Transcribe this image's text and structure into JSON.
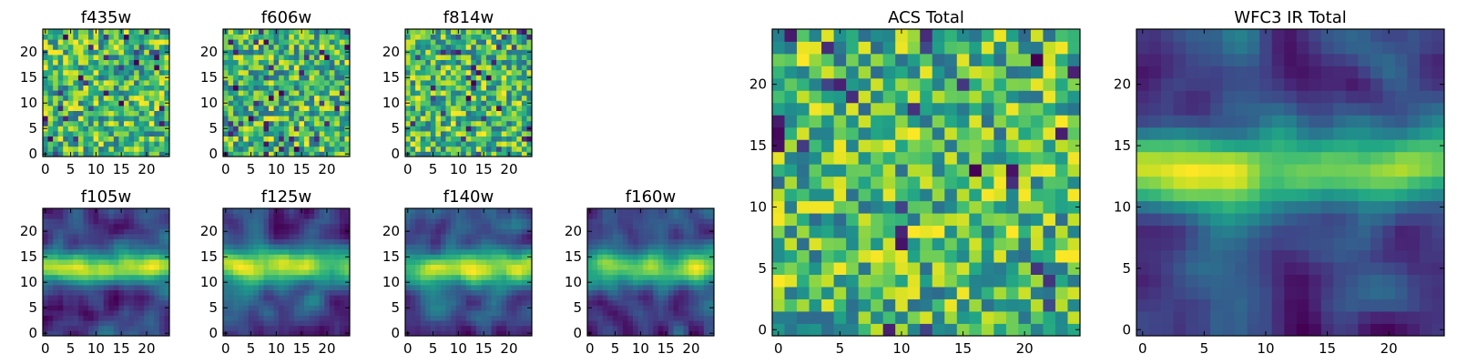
{
  "chart_data": [
    {
      "type": "heatmap",
      "title": "f435w",
      "size": 25,
      "colormap": "viridis",
      "values_note": "",
      "x_ticks": [
        0,
        5,
        10,
        15,
        20
      ],
      "x_tick_labels": [
        "0",
        "5",
        "10",
        "15",
        "20"
      ],
      "y_ticks": [
        0,
        5,
        10,
        15,
        20
      ],
      "y_tick_labels": [
        "0",
        "5",
        "10",
        "15",
        "20"
      ],
      "xlim": [
        -0.5,
        24.5
      ],
      "ylim": [
        -0.5,
        24.5
      ],
      "pattern": "noise",
      "seed": 11
    },
    {
      "type": "heatmap",
      "title": "f606w",
      "size": 25,
      "colormap": "viridis",
      "x_ticks": [
        0,
        5,
        10,
        15,
        20
      ],
      "x_tick_labels": [
        "0",
        "5",
        "10",
        "15",
        "20"
      ],
      "y_ticks": [
        0,
        5,
        10,
        15,
        20
      ],
      "y_tick_labels": [
        "0",
        "5",
        "10",
        "15",
        "20"
      ],
      "xlim": [
        -0.5,
        24.5
      ],
      "ylim": [
        -0.5,
        24.5
      ],
      "pattern": "noise",
      "seed": 23
    },
    {
      "type": "heatmap",
      "title": "f814w",
      "size": 25,
      "colormap": "viridis",
      "x_ticks": [
        0,
        5,
        10,
        15,
        20
      ],
      "x_tick_labels": [
        "0",
        "5",
        "10",
        "15",
        "20"
      ],
      "y_ticks": [
        0,
        5,
        10,
        15,
        20
      ],
      "y_tick_labels": [
        "0",
        "5",
        "10",
        "15",
        "20"
      ],
      "xlim": [
        -0.5,
        24.5
      ],
      "ylim": [
        -0.5,
        24.5
      ],
      "pattern": "noise",
      "seed": 37
    },
    {
      "type": "heatmap",
      "title": "f105w",
      "size": 25,
      "colormap": "viridis",
      "x_ticks": [
        0,
        5,
        10,
        15,
        20
      ],
      "x_tick_labels": [
        "0",
        "5",
        "10",
        "15",
        "20"
      ],
      "y_ticks": [
        0,
        5,
        10,
        15,
        20
      ],
      "y_tick_labels": [
        "0",
        "5",
        "10",
        "15",
        "20"
      ],
      "xlim": [
        -0.5,
        24.5
      ],
      "ylim": [
        -0.5,
        24.5
      ],
      "pattern": "smooth",
      "seed": 41
    },
    {
      "type": "heatmap",
      "title": "f125w",
      "size": 25,
      "colormap": "viridis",
      "x_ticks": [
        0,
        5,
        10,
        15,
        20
      ],
      "x_tick_labels": [
        "0",
        "5",
        "10",
        "15",
        "20"
      ],
      "y_ticks": [
        0,
        5,
        10,
        15,
        20
      ],
      "y_tick_labels": [
        "0",
        "5",
        "10",
        "15",
        "20"
      ],
      "xlim": [
        -0.5,
        24.5
      ],
      "ylim": [
        -0.5,
        24.5
      ],
      "pattern": "smooth",
      "seed": 53
    },
    {
      "type": "heatmap",
      "title": "f140w",
      "size": 25,
      "colormap": "viridis",
      "x_ticks": [
        0,
        5,
        10,
        15,
        20
      ],
      "x_tick_labels": [
        "0",
        "5",
        "10",
        "15",
        "20"
      ],
      "y_ticks": [
        0,
        5,
        10,
        15,
        20
      ],
      "y_tick_labels": [
        "0",
        "5",
        "10",
        "15",
        "20"
      ],
      "xlim": [
        -0.5,
        24.5
      ],
      "ylim": [
        -0.5,
        24.5
      ],
      "pattern": "smooth",
      "seed": 67
    },
    {
      "type": "heatmap",
      "title": "f160w",
      "size": 25,
      "colormap": "viridis",
      "x_ticks": [
        0,
        5,
        10,
        15,
        20
      ],
      "x_tick_labels": [
        "0",
        "5",
        "10",
        "15",
        "20"
      ],
      "y_ticks": [
        0,
        5,
        10,
        15,
        20
      ],
      "y_tick_labels": [
        "0",
        "5",
        "10",
        "15",
        "20"
      ],
      "xlim": [
        -0.5,
        24.5
      ],
      "ylim": [
        -0.5,
        24.5
      ],
      "pattern": "smooth",
      "seed": 79
    },
    {
      "type": "heatmap",
      "title": "ACS Total",
      "size": 25,
      "colormap": "viridis",
      "x_ticks": [
        0,
        5,
        10,
        15,
        20
      ],
      "x_tick_labels": [
        "0",
        "5",
        "10",
        "15",
        "20"
      ],
      "y_ticks": [
        0,
        5,
        10,
        15,
        20
      ],
      "y_tick_labels": [
        "0",
        "5",
        "10",
        "15",
        "20"
      ],
      "xlim": [
        -0.5,
        24.5
      ],
      "ylim": [
        -0.5,
        24.5
      ],
      "pattern": "noise",
      "seed": 97
    },
    {
      "type": "heatmap",
      "title": "WFC3 IR Total",
      "size": 25,
      "colormap": "viridis",
      "x_ticks": [
        0,
        5,
        10,
        15,
        20
      ],
      "x_tick_labels": [
        "0",
        "5",
        "10",
        "15",
        "20"
      ],
      "y_ticks": [
        0,
        5,
        10,
        15,
        20
      ],
      "y_tick_labels": [
        "0",
        "5",
        "10",
        "15",
        "20"
      ],
      "xlim": [
        -0.5,
        24.5
      ],
      "ylim": [
        -0.5,
        24.5
      ],
      "pattern": "smooth",
      "seed": 101
    }
  ]
}
